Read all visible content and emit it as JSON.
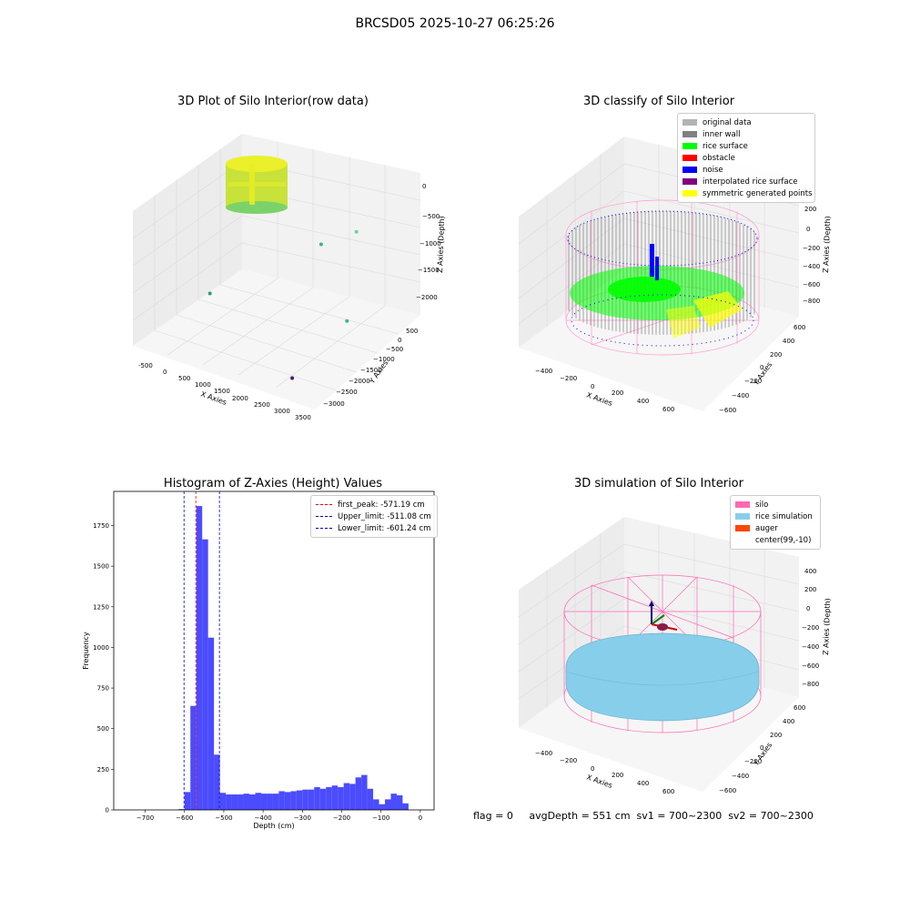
{
  "suptitle": "BRCSD05 2025-10-27 06:25:26",
  "footer_text": "flag = 0     avgDepth = 551 cm  sv1 = 700~2300  sv2 = 700~2300",
  "colors": {
    "original_data": "#b3b3b3",
    "inner_wall": "#808080",
    "rice_surface": "#00ff00",
    "obstacle": "#ff0000",
    "noise": "#0000ff",
    "interpolated": "#800080",
    "symmetric": "#ffff00",
    "silo": "#ff69b4",
    "rice_simulation": "#87ceeb",
    "auger": "#ff4500",
    "histogram": "#4b4bff",
    "peak_line": "#ff0000",
    "limit_line": "#0000cd"
  },
  "chart_data": [
    {
      "type": "scatter",
      "title": "3D Plot of Silo Interior(row data)",
      "xlabel": "X Axies",
      "ylabel": "Y Axies",
      "zlabel": "Z Axies (Depth)",
      "xticks": [
        "-500",
        "0",
        "500",
        "1000",
        "1500",
        "2000",
        "2500",
        "3000",
        "3500"
      ],
      "yticks": [
        "500",
        "0",
        "−500",
        "−1000",
        "−1500",
        "−2000",
        "−2500",
        "−3000"
      ],
      "zticks": [
        "0",
        "−500",
        "−1000",
        "−1500",
        "−2000"
      ],
      "xlim": [
        -700,
        3600
      ],
      "ylim": [
        -3200,
        700
      ],
      "zlim": [
        -2200,
        100
      ],
      "outliers": [
        {
          "x": 1300,
          "y": 500,
          "z": -1200
        },
        {
          "x": 2300,
          "y": 250,
          "z": -650
        },
        {
          "x": -400,
          "y": -900,
          "z": -2000
        },
        {
          "x": 3300,
          "y": -1600,
          "z": -1300
        },
        {
          "x": 2800,
          "y": -2800,
          "z": -2000
        }
      ]
    },
    {
      "type": "scatter",
      "title": "3D classify of Silo Interior",
      "xlabel": "X Axies",
      "ylabel": "Y Axies",
      "zlabel": "Z Axies (Depth)",
      "xticks": [
        "−400",
        "−200",
        "0",
        "200",
        "400",
        "600"
      ],
      "yticks": [
        "600",
        "400",
        "200",
        "0",
        "−200",
        "−400",
        "−600"
      ],
      "zticks": [
        "200",
        "0",
        "−200",
        "−400",
        "−600",
        "−800"
      ],
      "ztick_partial_top": "00",
      "legend": [
        "original data",
        "inner wall",
        "rice surface",
        "obstacle",
        "noise",
        "interpolated rice surface",
        "symmetric generated points"
      ]
    },
    {
      "type": "bar",
      "title": "Histogram of Z-Axies (Height) Values",
      "xlabel": "Depth (cm)",
      "ylabel": "Frequency",
      "xlim": [
        -780,
        35
      ],
      "ylim": [
        0,
        1960
      ],
      "xticks": [
        -700,
        -600,
        -500,
        -400,
        -300,
        -200,
        -100,
        0
      ],
      "xtick_labels": [
        "−700",
        "−600",
        "−500",
        "−400",
        "−300",
        "−200",
        "−100",
        "0"
      ],
      "yticks": [
        0,
        250,
        500,
        750,
        1000,
        1250,
        1500,
        1750
      ],
      "ytick_labels": [
        "0",
        "250",
        "500",
        "750",
        "1000",
        "1250",
        "1500",
        "1750"
      ],
      "bins": [
        {
          "x0": -615,
          "x1": -600,
          "value": 5
        },
        {
          "x0": -600,
          "x1": -585,
          "value": 110
        },
        {
          "x0": -585,
          "x1": -570,
          "value": 640
        },
        {
          "x0": -570,
          "x1": -555,
          "value": 1870
        },
        {
          "x0": -555,
          "x1": -540,
          "value": 1665
        },
        {
          "x0": -540,
          "x1": -525,
          "value": 1060
        },
        {
          "x0": -525,
          "x1": -510,
          "value": 340
        },
        {
          "x0": -510,
          "x1": -495,
          "value": 105
        },
        {
          "x0": -495,
          "x1": -480,
          "value": 95
        },
        {
          "x0": -480,
          "x1": -465,
          "value": 95
        },
        {
          "x0": -465,
          "x1": -450,
          "value": 95
        },
        {
          "x0": -450,
          "x1": -435,
          "value": 100
        },
        {
          "x0": -435,
          "x1": -420,
          "value": 95
        },
        {
          "x0": -420,
          "x1": -405,
          "value": 105
        },
        {
          "x0": -405,
          "x1": -390,
          "value": 100
        },
        {
          "x0": -390,
          "x1": -375,
          "value": 100
        },
        {
          "x0": -375,
          "x1": -360,
          "value": 100
        },
        {
          "x0": -360,
          "x1": -345,
          "value": 115
        },
        {
          "x0": -345,
          "x1": -330,
          "value": 110
        },
        {
          "x0": -330,
          "x1": -315,
          "value": 115
        },
        {
          "x0": -315,
          "x1": -300,
          "value": 120
        },
        {
          "x0": -300,
          "x1": -285,
          "value": 125
        },
        {
          "x0": -285,
          "x1": -270,
          "value": 125
        },
        {
          "x0": -270,
          "x1": -255,
          "value": 140
        },
        {
          "x0": -255,
          "x1": -240,
          "value": 130
        },
        {
          "x0": -240,
          "x1": -225,
          "value": 140
        },
        {
          "x0": -225,
          "x1": -210,
          "value": 150
        },
        {
          "x0": -210,
          "x1": -195,
          "value": 140
        },
        {
          "x0": -195,
          "x1": -180,
          "value": 165
        },
        {
          "x0": -180,
          "x1": -165,
          "value": 160
        },
        {
          "x0": -165,
          "x1": -150,
          "value": 200
        },
        {
          "x0": -150,
          "x1": -135,
          "value": 215
        },
        {
          "x0": -135,
          "x1": -120,
          "value": 130
        },
        {
          "x0": -120,
          "x1": -105,
          "value": 65
        },
        {
          "x0": -105,
          "x1": -90,
          "value": 35
        },
        {
          "x0": -90,
          "x1": -75,
          "value": 65
        },
        {
          "x0": -75,
          "x1": -60,
          "value": 100
        },
        {
          "x0": -60,
          "x1": -45,
          "value": 90
        },
        {
          "x0": -45,
          "x1": -30,
          "value": 40
        }
      ],
      "vlines": [
        {
          "x": -571.19,
          "label": "first_peak: -571.19 cm",
          "style": "peak"
        },
        {
          "x": -511.08,
          "label": "Upper_limit: -511.08 cm",
          "style": "limit"
        },
        {
          "x": -601.24,
          "label": "Lower_limit: -601.24 cm",
          "style": "limit"
        }
      ]
    },
    {
      "type": "scatter",
      "title": "3D simulation of Silo Interior",
      "xlabel": "X Axies",
      "ylabel": "Y Axies",
      "zlabel": "Z Axies (Depth)",
      "xticks": [
        "−400",
        "−200",
        "0",
        "200",
        "400",
        "600"
      ],
      "yticks": [
        "600",
        "400",
        "200",
        "0",
        "−200",
        "−400",
        "−600"
      ],
      "zticks": [
        "400",
        "200",
        "0",
        "−200",
        "−400",
        "−600",
        "−800"
      ],
      "legend": [
        "silo",
        "rice simulation",
        "auger",
        "center(99,-10)"
      ]
    }
  ]
}
